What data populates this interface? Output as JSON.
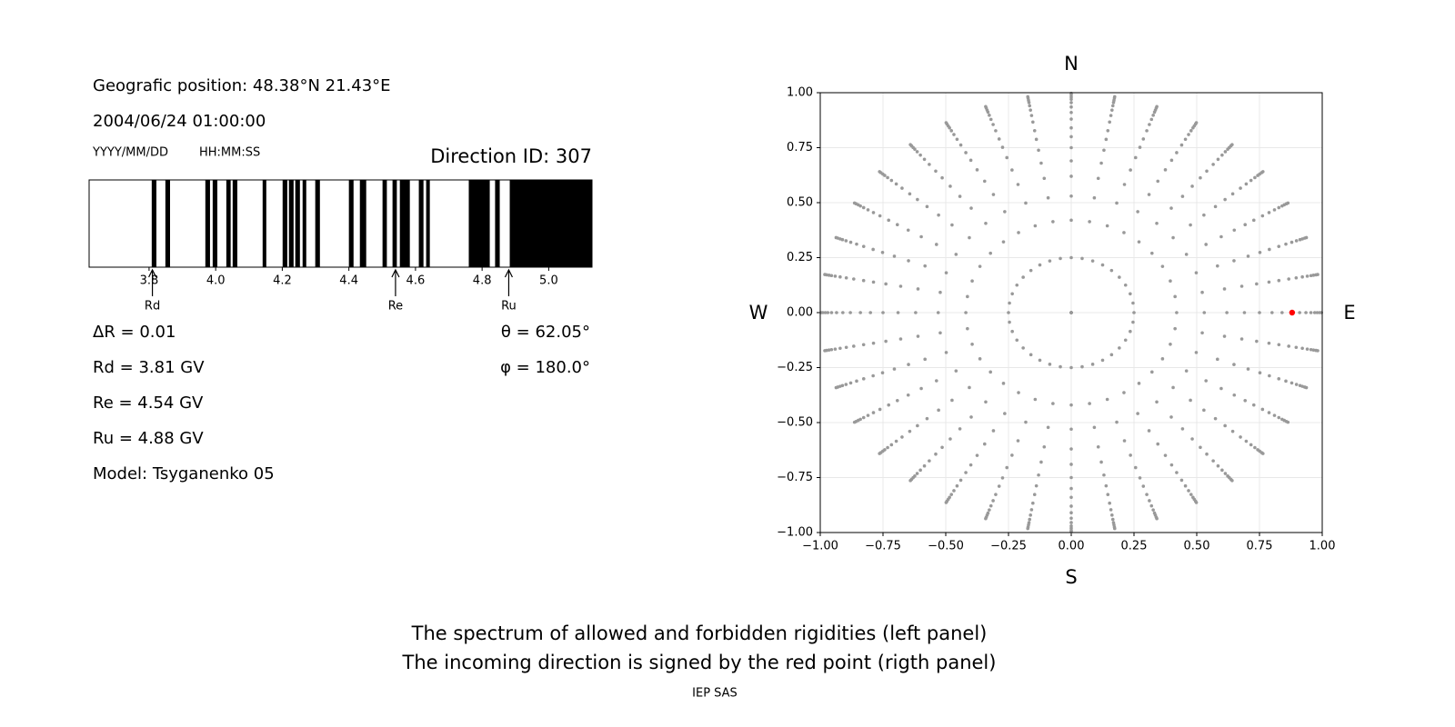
{
  "header": {
    "position": "Geografic position: 48.38°N 21.43°E",
    "datetime": "2004/06/24 01:00:00",
    "date_format": "YYYY/MM/DD",
    "time_format": "HH:MM:SS",
    "direction_id": "Direction ID: 307"
  },
  "chart_data": [
    {
      "type": "spectrum",
      "xlim": [
        3.62,
        5.13
      ],
      "xticks": [
        3.8,
        {
          "value": 4,
          "label": "4.0"
        },
        4.2,
        4.4,
        4.6,
        4.8,
        {
          "value": 5,
          "label": "5.0"
        }
      ],
      "color": "#000000",
      "bands": [
        [
          3.808,
          3.822
        ],
        [
          3.849,
          3.863
        ],
        [
          3.969,
          3.983
        ],
        [
          3.991,
          4.005
        ],
        [
          4.032,
          4.045
        ],
        [
          4.051,
          4.065
        ],
        [
          4.141,
          4.152
        ],
        [
          4.201,
          4.215
        ],
        [
          4.22,
          4.234
        ],
        [
          4.239,
          4.253
        ],
        [
          4.261,
          4.272
        ],
        [
          4.299,
          4.313
        ],
        [
          4.4,
          4.414
        ],
        [
          4.433,
          4.452
        ],
        [
          4.501,
          4.514
        ],
        [
          4.531,
          4.544
        ],
        [
          4.553,
          4.583
        ],
        [
          4.61,
          4.624
        ],
        [
          4.632,
          4.643
        ],
        [
          4.76,
          4.823
        ],
        [
          4.839,
          4.853
        ],
        [
          4.883,
          5.13
        ]
      ],
      "markers": [
        {
          "label": "Rd",
          "value": 3.81
        },
        {
          "label": "Re",
          "value": 4.54
        },
        {
          "label": "Ru",
          "value": 4.88
        }
      ]
    },
    {
      "type": "scatter",
      "xlim": [
        -1,
        1
      ],
      "ylim": [
        -1,
        1
      ],
      "grid": true,
      "xticks": [
        {
          "value": -1,
          "label": "−1.00"
        },
        {
          "value": -0.75,
          "label": "−0.75"
        },
        {
          "value": -0.5,
          "label": "−0.50"
        },
        {
          "value": -0.25,
          "label": "−0.25"
        },
        {
          "value": 0,
          "label": "0.00"
        },
        {
          "value": 0.25,
          "label": "0.25"
        },
        {
          "value": 0.5,
          "label": "0.50"
        },
        {
          "value": 0.75,
          "label": "0.75"
        },
        {
          "value": 1,
          "label": "1.00"
        }
      ],
      "yticks": [
        {
          "value": -1,
          "label": "−1.00"
        },
        {
          "value": -0.75,
          "label": "−0.75"
        },
        {
          "value": -0.5,
          "label": "−0.50"
        },
        {
          "value": -0.25,
          "label": "−0.25"
        },
        {
          "value": 0,
          "label": "0.00"
        },
        {
          "value": 0.25,
          "label": "0.25"
        },
        {
          "value": 0.5,
          "label": "0.50"
        },
        {
          "value": 0.75,
          "label": "0.75"
        },
        {
          "value": 1,
          "label": "1.00"
        }
      ],
      "compass": {
        "top": "N",
        "bottom": "S",
        "left": "W",
        "right": "E"
      },
      "directions": {
        "color": "#999999",
        "radii": [
          0,
          0.25,
          0.42,
          0.53,
          0.62,
          0.69,
          0.75,
          0.8,
          0.84,
          0.88,
          0.91,
          0.935,
          0.955,
          0.97,
          0.98,
          0.99,
          0.997
        ],
        "azimuths": [
          0,
          10,
          20,
          30,
          40,
          50,
          60,
          70,
          80,
          90,
          100,
          110,
          120,
          130,
          140,
          150,
          160,
          170,
          180,
          190,
          200,
          210,
          220,
          230,
          240,
          250,
          260,
          270,
          280,
          290,
          300,
          310,
          320,
          330,
          340,
          350
        ]
      },
      "series": [
        {
          "color": "#ff0000",
          "x": [
            0.88
          ],
          "y": [
            0
          ]
        }
      ]
    }
  ],
  "results": [
    "ΔR = 0.01",
    "Rd = 3.81 GV",
    "Re = 4.54 GV",
    "Ru = 4.88 GV",
    "Model: Tsyganenko 05"
  ],
  "angles": [
    "θ = 62.05°",
    "φ = 180.0°"
  ],
  "footer": {
    "lines": [
      "The spectrum of allowed and forbidden rigidities (left panel)",
      "The incoming direction is signed by the red point (rigth panel)"
    ],
    "credit": "IEP SAS"
  }
}
